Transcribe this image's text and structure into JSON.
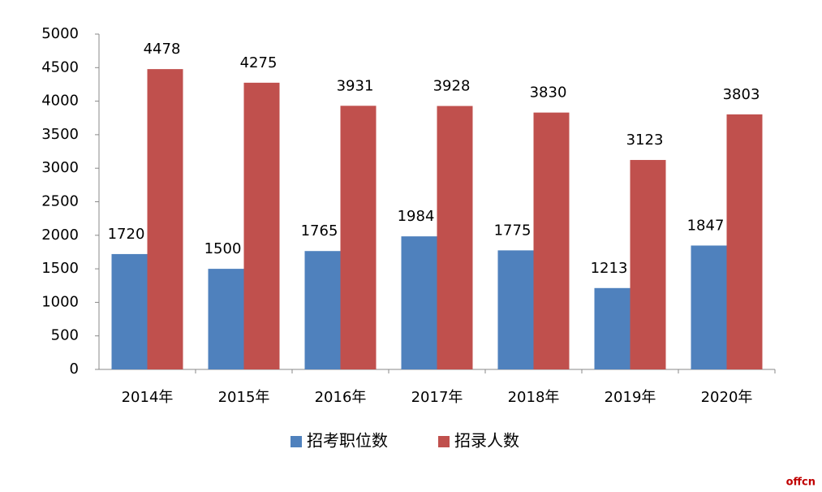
{
  "chart_data": {
    "type": "bar",
    "categories": [
      "2014年",
      "2015年",
      "2016年",
      "2017年",
      "2018年",
      "2019年",
      "2020年"
    ],
    "series": [
      {
        "name": "招考职位数",
        "color": "#4f81bd",
        "values": [
          1720,
          1500,
          1765,
          1984,
          1775,
          1213,
          1847
        ]
      },
      {
        "name": "招录人数",
        "color": "#c0504d",
        "values": [
          4478,
          4275,
          3931,
          3928,
          3830,
          3123,
          3803
        ]
      }
    ],
    "ylim": [
      0,
      5000
    ],
    "yticks": [
      0,
      500,
      1000,
      1500,
      2000,
      2500,
      3000,
      3500,
      4000,
      4500,
      5000
    ],
    "legend": "bottom",
    "watermark": "offcn"
  }
}
